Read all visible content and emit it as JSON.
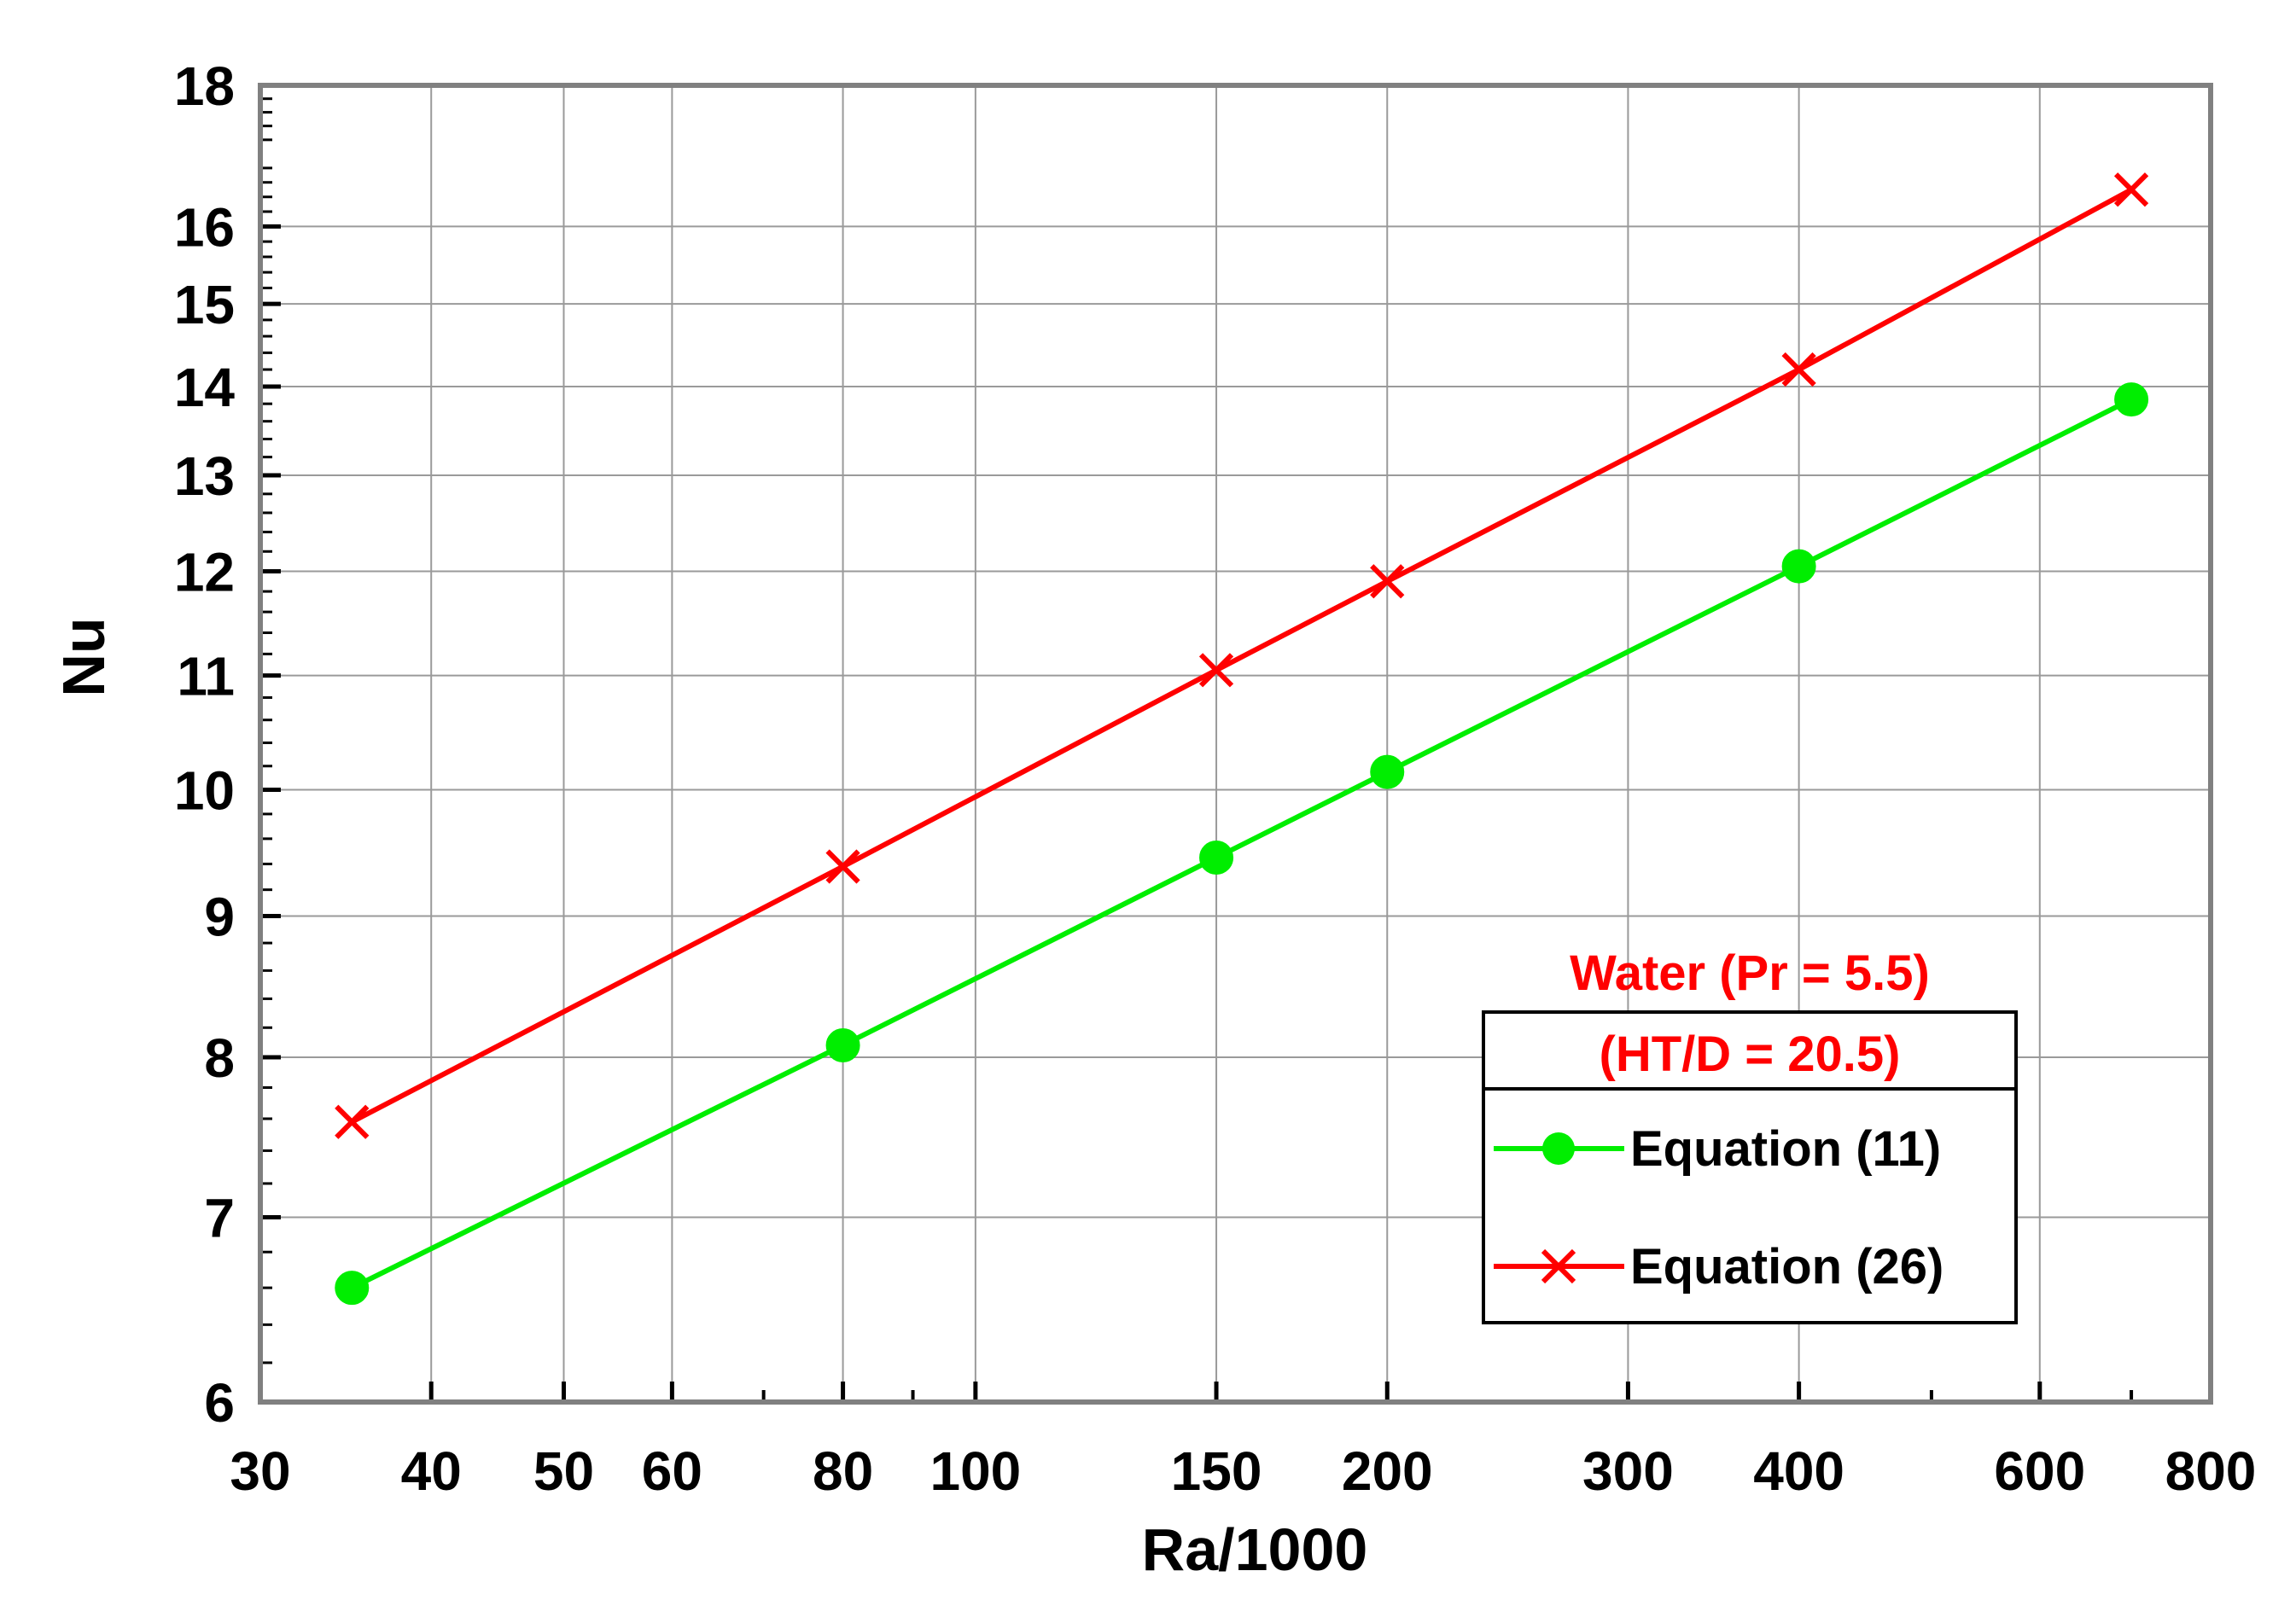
{
  "chart_data": {
    "type": "line",
    "xscale": "log",
    "yscale": "log",
    "xlabel": "Ra/1000",
    "ylabel": "Nu",
    "xlim": [
      30,
      800
    ],
    "ylim": [
      6,
      18
    ],
    "x_ticks": [
      30,
      40,
      50,
      60,
      80,
      100,
      150,
      200,
      300,
      400,
      600,
      800
    ],
    "y_ticks": [
      6,
      7,
      8,
      9,
      10,
      11,
      12,
      13,
      14,
      15,
      16,
      18
    ],
    "grid": true,
    "legend_title_lines": [
      "Water (Pr = 5.5)",
      "(HT/D = 20.5)"
    ],
    "legend_title_color": "#ff0000",
    "series": [
      {
        "name": "Equation (11)",
        "color": "#00ee00",
        "marker": "circle",
        "x": [
          35,
          80,
          150,
          200,
          400,
          700
        ],
        "y": [
          6.6,
          8.08,
          9.45,
          10.15,
          12.05,
          13.85
        ]
      },
      {
        "name": "Equation (26)",
        "color": "#ff0000",
        "marker": "x",
        "x": [
          35,
          80,
          150,
          200,
          400,
          700
        ],
        "y": [
          7.58,
          9.38,
          11.05,
          11.9,
          14.2,
          16.5
        ]
      }
    ]
  }
}
